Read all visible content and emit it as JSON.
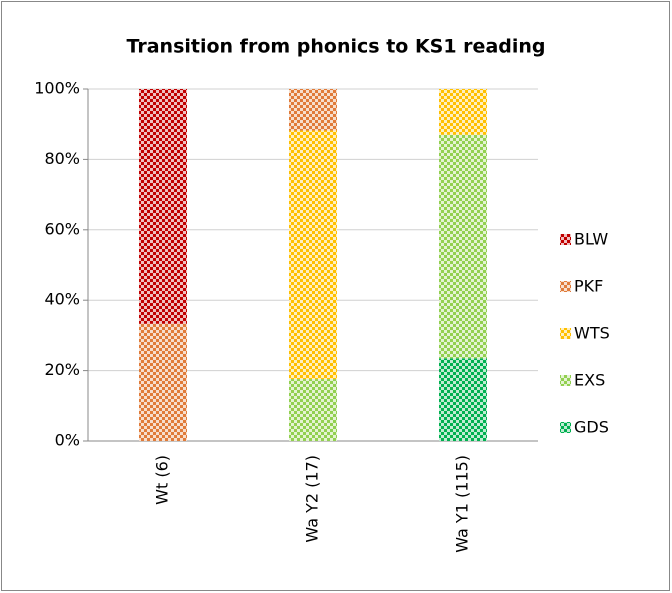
{
  "chart_data": {
    "type": "stacked_bar",
    "title": "Transition from phonics to KS1 reading",
    "categories": [
      "Wt (6)",
      "Wa Y2 (17)",
      "Wa Y1 (115)"
    ],
    "series": [
      {
        "name": "GDS",
        "color": "#00b050",
        "values": [
          0,
          0,
          23.5
        ]
      },
      {
        "name": "EXS",
        "color": "#92d050",
        "values": [
          0,
          17.6,
          63.5
        ]
      },
      {
        "name": "WTS",
        "color": "#ffc000",
        "values": [
          0,
          70.6,
          13.0
        ]
      },
      {
        "name": "PKF",
        "color": "#e07b39",
        "values": [
          33.3,
          11.8,
          0
        ]
      },
      {
        "name": "BLW",
        "color": "#c00000",
        "values": [
          66.7,
          0,
          0
        ]
      }
    ],
    "ylim": [
      0,
      100
    ],
    "yticks": [
      {
        "value": 0,
        "label": "0%"
      },
      {
        "value": 20,
        "label": "20%"
      },
      {
        "value": 40,
        "label": "40%"
      },
      {
        "value": 60,
        "label": "60%"
      },
      {
        "value": 80,
        "label": "80%"
      },
      {
        "value": 100,
        "label": "100%"
      }
    ],
    "grid": true,
    "legend": "right"
  }
}
